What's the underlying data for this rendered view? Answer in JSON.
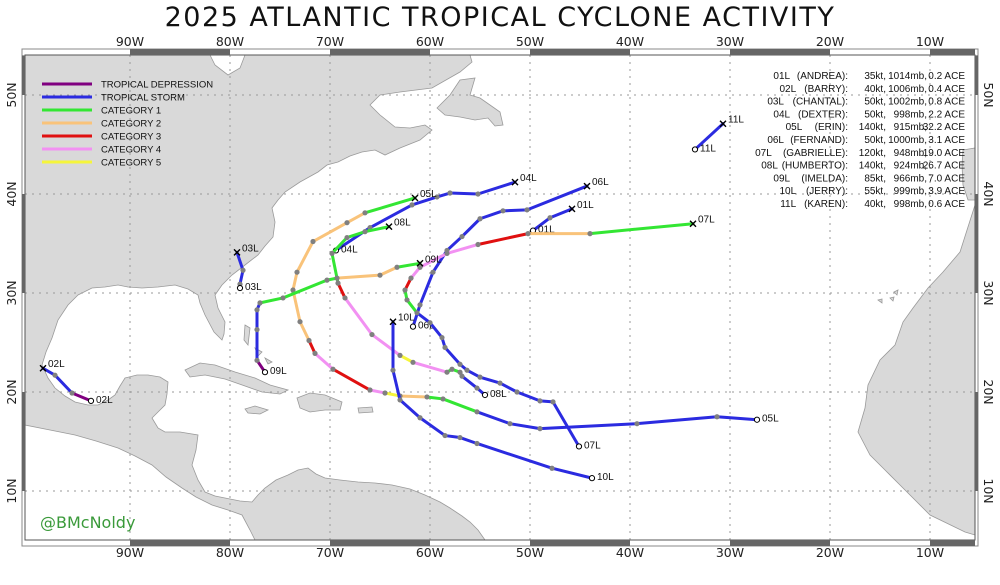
{
  "title": "2025 ATLANTIC TROPICAL CYCLONE ACTIVITY",
  "credit": "@BMcNoldy",
  "map": {
    "lon_labels": [
      "90W",
      "80W",
      "70W",
      "60W",
      "50W",
      "40W",
      "30W",
      "20W",
      "10W"
    ],
    "lon_values": [
      90,
      80,
      70,
      60,
      50,
      40,
      30,
      20,
      10
    ],
    "lat_labels": [
      "10N",
      "20N",
      "30N",
      "40N",
      "50N"
    ],
    "lat_values": [
      10,
      20,
      30,
      40,
      50
    ],
    "land_color": "#d9d9d9",
    "ocean_color": "#ffffff"
  },
  "legend": [
    {
      "code": "TD",
      "label": "TROPICAL DEPRESSION",
      "color": "#800080"
    },
    {
      "code": "TS",
      "label": "TROPICAL STORM",
      "color": "#2b2be0"
    },
    {
      "code": "C1",
      "label": "CATEGORY 1",
      "color": "#33e633"
    },
    {
      "code": "C2",
      "label": "CATEGORY 2",
      "color": "#f9c37a"
    },
    {
      "code": "C3",
      "label": "CATEGORY 3",
      "color": "#e01010"
    },
    {
      "code": "C4",
      "label": "CATEGORY 4",
      "color": "#f291f2"
    },
    {
      "code": "C5",
      "label": "CATEGORY 5",
      "color": "#f5f53b"
    }
  ],
  "storms": [
    {
      "id": "01L",
      "name": "(ANDREA):",
      "kt": "35kt,",
      "mb": "1014mb,",
      "ace": "0.2 ACE",
      "track": [
        [
          49.7,
          36.3,
          "TS"
        ],
        [
          48.0,
          37.6,
          "TS"
        ],
        [
          45.8,
          38.5,
          ""
        ]
      ]
    },
    {
      "id": "02L",
      "name": "(BARRY):",
      "kt": "40kt,",
      "mb": "1006mb,",
      "ace": "0.4 ACE",
      "track": [
        [
          93.9,
          19.1,
          "TD"
        ],
        [
          95.8,
          19.9,
          "TS"
        ],
        [
          97.5,
          21.7,
          "TS"
        ],
        [
          98.7,
          22.4,
          ""
        ]
      ]
    },
    {
      "id": "03L",
      "name": "(CHANTAL):",
      "kt": "50kt,",
      "mb": "1002mb,",
      "ace": "0.8 ACE",
      "track": [
        [
          79.0,
          30.5,
          "TD"
        ],
        [
          79.0,
          30.9,
          "TS"
        ],
        [
          78.7,
          32.3,
          "TS"
        ],
        [
          79.3,
          34.1,
          ""
        ]
      ]
    },
    {
      "id": "04L",
      "name": "(DEXTER):",
      "kt": "50kt,",
      "mb": "998mb,",
      "ace": "2.2 ACE",
      "track": [
        [
          69.4,
          34.3,
          "TS"
        ],
        [
          66.0,
          36.6,
          "TS"
        ],
        [
          61.8,
          38.9,
          "TS"
        ],
        [
          59.3,
          39.7,
          "TS"
        ],
        [
          58.0,
          40.1,
          "TS"
        ],
        [
          55.2,
          40.0,
          "TS"
        ],
        [
          51.5,
          41.2,
          ""
        ]
      ]
    },
    {
      "id": "05L",
      "name": "(ERIN):",
      "kt": "140kt,",
      "mb": "915mb,",
      "ace": "32.2 ACE",
      "track": [
        [
          27.3,
          17.2,
          "TS"
        ],
        [
          31.3,
          17.5,
          "TS"
        ],
        [
          39.3,
          16.8,
          "TS"
        ],
        [
          49.0,
          16.3,
          "TS"
        ],
        [
          52.0,
          16.8,
          "TS"
        ],
        [
          55.3,
          18.0,
          "C1"
        ],
        [
          58.7,
          19.3,
          "C1"
        ],
        [
          60.3,
          19.5,
          "C2"
        ],
        [
          63.0,
          19.6,
          "C5"
        ],
        [
          64.5,
          19.9,
          "C4"
        ],
        [
          66.0,
          20.2,
          "C3"
        ],
        [
          69.7,
          22.3,
          "C4"
        ],
        [
          71.5,
          23.9,
          "C3"
        ],
        [
          72.1,
          25.2,
          "C2"
        ],
        [
          73.0,
          27.1,
          "C2"
        ],
        [
          73.7,
          30.3,
          "C2"
        ],
        [
          73.3,
          32.1,
          "C2"
        ],
        [
          71.7,
          35.2,
          "C2"
        ],
        [
          68.3,
          37.1,
          "C2"
        ],
        [
          66.5,
          38.1,
          "C1"
        ],
        [
          61.5,
          39.6,
          ""
        ]
      ]
    },
    {
      "id": "06L",
      "name": "(FERNAND):",
      "kt": "50kt,",
      "mb": "1000mb,",
      "ace": "3.1 ACE",
      "track": [
        [
          61.7,
          26.6,
          "TS"
        ],
        [
          61.0,
          28.8,
          "TS"
        ],
        [
          59.7,
          32.1,
          "TS"
        ],
        [
          58.3,
          34.3,
          "TS"
        ],
        [
          56.8,
          35.7,
          "TS"
        ],
        [
          55.0,
          37.5,
          "TS"
        ],
        [
          52.7,
          38.3,
          "TS"
        ],
        [
          50.3,
          38.4,
          "TS"
        ],
        [
          44.3,
          40.8,
          ""
        ]
      ]
    },
    {
      "id": "07L",
      "name": "(GABRIELLE):",
      "kt": "120kt,",
      "mb": "948mb,",
      "ace": "19.0 ACE",
      "track": [
        [
          45.1,
          14.5,
          "TS"
        ],
        [
          47.7,
          19.0,
          "TS"
        ],
        [
          49.0,
          19.1,
          "TS"
        ],
        [
          51.3,
          20.0,
          "TS"
        ],
        [
          53.0,
          20.9,
          "TS"
        ],
        [
          55.0,
          21.5,
          "TS"
        ],
        [
          56.3,
          22.2,
          "TS"
        ],
        [
          57.0,
          22.8,
          "TS"
        ],
        [
          58.5,
          24.5,
          "TS"
        ],
        [
          58.8,
          25.5,
          "TS"
        ],
        [
          60.0,
          27.0,
          "TS"
        ],
        [
          61.3,
          28.0,
          "C1"
        ],
        [
          62.3,
          29.3,
          "C1"
        ],
        [
          62.5,
          30.3,
          "C3"
        ],
        [
          61.9,
          31.5,
          "C4"
        ],
        [
          61.0,
          32.6,
          "C4"
        ],
        [
          58.3,
          34.0,
          "C4"
        ],
        [
          55.2,
          34.9,
          "C3"
        ],
        [
          50.2,
          36.0,
          "C2"
        ],
        [
          44.0,
          36.0,
          "C1"
        ],
        [
          33.7,
          37.0,
          ""
        ]
      ]
    },
    {
      "id": "08L",
      "name": "(HUMBERTO):",
      "kt": "140kt,",
      "mb": "924mb,",
      "ace": "26.7 ACE",
      "track": [
        [
          54.5,
          19.7,
          "TS"
        ],
        [
          55.3,
          20.4,
          "TS"
        ],
        [
          56.8,
          21.6,
          "TS"
        ],
        [
          57.0,
          22.0,
          "C1"
        ],
        [
          57.8,
          22.3,
          "C1"
        ],
        [
          58.3,
          22.0,
          "C4"
        ],
        [
          61.7,
          23.0,
          "C5"
        ],
        [
          63.0,
          23.7,
          "C4"
        ],
        [
          65.8,
          25.8,
          "C4"
        ],
        [
          68.5,
          29.5,
          "C3"
        ],
        [
          69.2,
          31.0,
          "C1"
        ],
        [
          69.8,
          34.0,
          "C1"
        ],
        [
          68.3,
          35.6,
          "C1"
        ],
        [
          66.5,
          36.2,
          "C1"
        ],
        [
          64.1,
          36.7,
          ""
        ]
      ]
    },
    {
      "id": "09L",
      "name": "(IMELDA):",
      "kt": "85kt,",
      "mb": "966mb,",
      "ace": "7.0 ACE",
      "track": [
        [
          76.5,
          22.0,
          "TD"
        ],
        [
          77.3,
          23.2,
          "TS"
        ],
        [
          77.3,
          26.3,
          "TS"
        ],
        [
          77.3,
          28.3,
          "TS"
        ],
        [
          77.0,
          29.0,
          "C1"
        ],
        [
          74.7,
          29.5,
          "C1"
        ],
        [
          70.3,
          31.3,
          "C1"
        ],
        [
          69.3,
          31.5,
          "C2"
        ],
        [
          65.0,
          31.8,
          "C2"
        ],
        [
          63.3,
          32.6,
          "C1"
        ],
        [
          61.0,
          33.0,
          ""
        ]
      ]
    },
    {
      "id": "10L",
      "name": "(JERRY):",
      "kt": "55kt,",
      "mb": "999mb,",
      "ace": "3.9 ACE",
      "track": [
        [
          43.8,
          11.3,
          "TS"
        ],
        [
          47.8,
          12.3,
          "TS"
        ],
        [
          55.3,
          14.8,
          "TS"
        ],
        [
          57.0,
          15.4,
          "TS"
        ],
        [
          58.5,
          15.6,
          "TS"
        ],
        [
          61.0,
          17.4,
          "TS"
        ],
        [
          63.0,
          19.2,
          "TS"
        ],
        [
          63.7,
          22.2,
          "TS"
        ],
        [
          63.7,
          27.1,
          ""
        ]
      ]
    },
    {
      "id": "11L",
      "name": "(KAREN):",
      "kt": "40kt,",
      "mb": "998mb,",
      "ace": "0.6 ACE",
      "track": [
        [
          33.5,
          44.5,
          "TS"
        ],
        [
          30.7,
          47.1,
          ""
        ]
      ]
    }
  ]
}
